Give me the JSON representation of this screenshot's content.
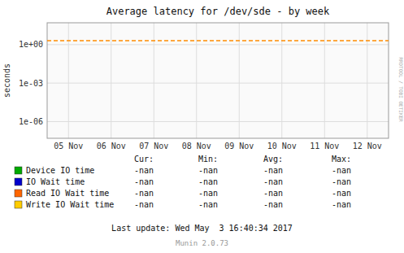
{
  "chart_data": {
    "type": "line",
    "title": "Average latency for /dev/sde - by week",
    "y_label": "seconds",
    "categories": [
      "05 Nov",
      "06 Nov",
      "07 Nov",
      "08 Nov",
      "09 Nov",
      "10 Nov",
      "11 Nov",
      "12 Nov"
    ],
    "log": "y",
    "ylim": [
      5e-08,
      50
    ],
    "yticks": [
      {
        "value": 1e-06,
        "label": "1e-06"
      },
      {
        "value": 0.001,
        "label": "1e-03"
      },
      {
        "value": 1,
        "label": "1e+00"
      }
    ],
    "grid": true,
    "series": [
      {
        "name": "Device IO time",
        "color": "#00aa00",
        "values": [
          null,
          null,
          null,
          null,
          null,
          null,
          null,
          null
        ],
        "table_values": [
          "-nan",
          "-nan",
          "-nan",
          "-nan"
        ]
      },
      {
        "name": "IO Wait time",
        "color": "#0000cc",
        "values": [
          null,
          null,
          null,
          null,
          null,
          null,
          null,
          null
        ],
        "table_values": [
          "-nan",
          "-nan",
          "-nan",
          "-nan"
        ]
      },
      {
        "name": "Read IO Wait time",
        "color": "#ff6600",
        "values": [
          null,
          null,
          null,
          null,
          null,
          null,
          null,
          null
        ],
        "table_values": [
          "-nan",
          "-nan",
          "-nan",
          "-nan"
        ]
      },
      {
        "name": "Write IO Wait time",
        "color": "#ffcc00",
        "values": [
          null,
          null,
          null,
          null,
          null,
          null,
          null,
          null
        ],
        "table_values": [
          "-nan",
          "-nan",
          "-nan",
          "-nan"
        ]
      }
    ],
    "reference_lines": [
      {
        "value": 2.0,
        "color": "#ff8c00",
        "line_style": "dashed"
      }
    ],
    "table_headers": [
      "Cur:",
      "Min:",
      "Avg:",
      "Max:"
    ],
    "last_update": "Last update: Wed May  3 16:40:34 2017",
    "version": "Munin 2.0.73",
    "side_label": "RRDTOOL / TOBI OETIKER"
  }
}
